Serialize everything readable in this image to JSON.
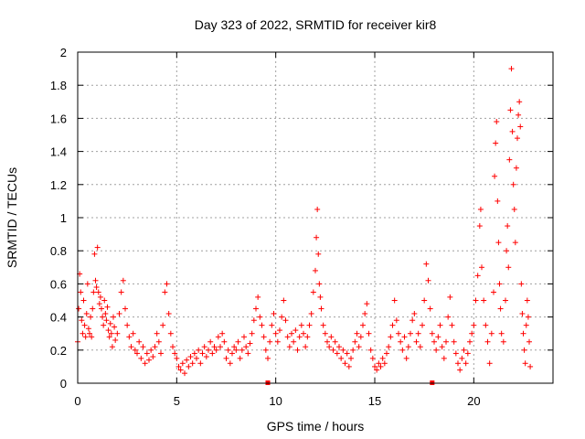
{
  "chart_data": {
    "type": "scatter",
    "title": "Day 323 of 2022, SRMTID for receiver kir8",
    "xlabel": "GPS time / hours",
    "ylabel": "SRMTID / TECUs",
    "xlim": [
      0,
      24
    ],
    "ylim": [
      0,
      2
    ],
    "xticks": [
      0,
      5,
      10,
      15,
      20
    ],
    "yticks": [
      0,
      0.2,
      0.4,
      0.6,
      0.8,
      1,
      1.2,
      1.4,
      1.6,
      1.8,
      2
    ],
    "grid": true,
    "marker": "plus",
    "color": "#ff0000",
    "gap_markers_x": [
      9.6,
      17.9
    ],
    "series": [
      {
        "name": "SRMTID",
        "points": [
          [
            0.0,
            0.25
          ],
          [
            0.05,
            0.45
          ],
          [
            0.1,
            0.66
          ],
          [
            0.15,
            0.55
          ],
          [
            0.2,
            0.38
          ],
          [
            0.25,
            0.3
          ],
          [
            0.3,
            0.5
          ],
          [
            0.35,
            0.35
          ],
          [
            0.4,
            0.28
          ],
          [
            0.45,
            0.42
          ],
          [
            0.5,
            0.6
          ],
          [
            0.55,
            0.33
          ],
          [
            0.6,
            0.3
          ],
          [
            0.65,
            0.4
          ],
          [
            0.7,
            0.28
          ],
          [
            0.75,
            0.45
          ],
          [
            0.8,
            0.55
          ],
          [
            0.85,
            0.78
          ],
          [
            0.9,
            0.62
          ],
          [
            0.95,
            0.58
          ],
          [
            1.0,
            0.82
          ],
          [
            1.05,
            0.55
          ],
          [
            1.1,
            0.48
          ],
          [
            1.15,
            0.52
          ],
          [
            1.2,
            0.45
          ],
          [
            1.25,
            0.4
          ],
          [
            1.3,
            0.35
          ],
          [
            1.35,
            0.5
          ],
          [
            1.4,
            0.42
          ],
          [
            1.45,
            0.38
          ],
          [
            1.5,
            0.46
          ],
          [
            1.55,
            0.32
          ],
          [
            1.6,
            0.28
          ],
          [
            1.65,
            0.36
          ],
          [
            1.7,
            0.3
          ],
          [
            1.75,
            0.22
          ],
          [
            1.8,
            0.4
          ],
          [
            1.85,
            0.34
          ],
          [
            1.9,
            0.26
          ],
          [
            2.0,
            0.3
          ],
          [
            2.1,
            0.42
          ],
          [
            2.2,
            0.55
          ],
          [
            2.3,
            0.62
          ],
          [
            2.4,
            0.45
          ],
          [
            2.5,
            0.35
          ],
          [
            2.6,
            0.28
          ],
          [
            2.7,
            0.22
          ],
          [
            2.8,
            0.3
          ],
          [
            2.9,
            0.2
          ],
          [
            3.0,
            0.18
          ],
          [
            3.1,
            0.25
          ],
          [
            3.2,
            0.15
          ],
          [
            3.3,
            0.22
          ],
          [
            3.4,
            0.12
          ],
          [
            3.5,
            0.18
          ],
          [
            3.6,
            0.14
          ],
          [
            3.7,
            0.2
          ],
          [
            3.8,
            0.16
          ],
          [
            3.9,
            0.22
          ],
          [
            4.0,
            0.3
          ],
          [
            4.1,
            0.25
          ],
          [
            4.2,
            0.18
          ],
          [
            4.3,
            0.35
          ],
          [
            4.4,
            0.55
          ],
          [
            4.5,
            0.6
          ],
          [
            4.6,
            0.42
          ],
          [
            4.7,
            0.3
          ],
          [
            4.8,
            0.22
          ],
          [
            4.9,
            0.18
          ],
          [
            5.0,
            0.15
          ],
          [
            5.1,
            0.1
          ],
          [
            5.2,
            0.08
          ],
          [
            5.3,
            0.12
          ],
          [
            5.4,
            0.06
          ],
          [
            5.5,
            0.14
          ],
          [
            5.6,
            0.1
          ],
          [
            5.7,
            0.16
          ],
          [
            5.8,
            0.12
          ],
          [
            5.9,
            0.18
          ],
          [
            6.0,
            0.15
          ],
          [
            6.1,
            0.2
          ],
          [
            6.2,
            0.12
          ],
          [
            6.3,
            0.18
          ],
          [
            6.4,
            0.22
          ],
          [
            6.5,
            0.16
          ],
          [
            6.6,
            0.2
          ],
          [
            6.7,
            0.25
          ],
          [
            6.8,
            0.18
          ],
          [
            6.9,
            0.22
          ],
          [
            7.0,
            0.2
          ],
          [
            7.1,
            0.28
          ],
          [
            7.2,
            0.22
          ],
          [
            7.3,
            0.3
          ],
          [
            7.4,
            0.25
          ],
          [
            7.5,
            0.15
          ],
          [
            7.6,
            0.2
          ],
          [
            7.7,
            0.12
          ],
          [
            7.8,
            0.18
          ],
          [
            7.9,
            0.22
          ],
          [
            8.0,
            0.2
          ],
          [
            8.1,
            0.25
          ],
          [
            8.2,
            0.15
          ],
          [
            8.3,
            0.2
          ],
          [
            8.4,
            0.28
          ],
          [
            8.5,
            0.22
          ],
          [
            8.6,
            0.18
          ],
          [
            8.7,
            0.24
          ],
          [
            8.8,
            0.3
          ],
          [
            8.9,
            0.38
          ],
          [
            9.0,
            0.45
          ],
          [
            9.1,
            0.52
          ],
          [
            9.2,
            0.4
          ],
          [
            9.3,
            0.35
          ],
          [
            9.4,
            0.28
          ],
          [
            9.5,
            0.2
          ],
          [
            9.6,
            0.15
          ],
          [
            9.7,
            0.25
          ],
          [
            9.8,
            0.35
          ],
          [
            9.9,
            0.42
          ],
          [
            10.0,
            0.3
          ],
          [
            10.1,
            0.25
          ],
          [
            10.2,
            0.32
          ],
          [
            10.3,
            0.4
          ],
          [
            10.4,
            0.5
          ],
          [
            10.5,
            0.38
          ],
          [
            10.6,
            0.28
          ],
          [
            10.7,
            0.22
          ],
          [
            10.8,
            0.3
          ],
          [
            10.9,
            0.25
          ],
          [
            11.0,
            0.32
          ],
          [
            11.1,
            0.2
          ],
          [
            11.2,
            0.28
          ],
          [
            11.3,
            0.35
          ],
          [
            11.4,
            0.3
          ],
          [
            11.5,
            0.22
          ],
          [
            11.6,
            0.28
          ],
          [
            11.7,
            0.35
          ],
          [
            11.8,
            0.42
          ],
          [
            11.9,
            0.55
          ],
          [
            12.0,
            0.68
          ],
          [
            12.05,
            0.88
          ],
          [
            12.1,
            1.05
          ],
          [
            12.15,
            0.78
          ],
          [
            12.2,
            0.6
          ],
          [
            12.25,
            0.52
          ],
          [
            12.3,
            0.45
          ],
          [
            12.4,
            0.35
          ],
          [
            12.5,
            0.3
          ],
          [
            12.6,
            0.25
          ],
          [
            12.7,
            0.22
          ],
          [
            12.8,
            0.28
          ],
          [
            12.9,
            0.2
          ],
          [
            13.0,
            0.25
          ],
          [
            13.1,
            0.18
          ],
          [
            13.2,
            0.22
          ],
          [
            13.3,
            0.15
          ],
          [
            13.4,
            0.2
          ],
          [
            13.5,
            0.12
          ],
          [
            13.6,
            0.18
          ],
          [
            13.7,
            0.1
          ],
          [
            13.8,
            0.15
          ],
          [
            13.9,
            0.2
          ],
          [
            14.0,
            0.25
          ],
          [
            14.1,
            0.3
          ],
          [
            14.2,
            0.22
          ],
          [
            14.3,
            0.28
          ],
          [
            14.4,
            0.35
          ],
          [
            14.5,
            0.42
          ],
          [
            14.6,
            0.48
          ],
          [
            14.7,
            0.3
          ],
          [
            14.8,
            0.2
          ],
          [
            14.9,
            0.15
          ],
          [
            15.0,
            0.1
          ],
          [
            15.1,
            0.08
          ],
          [
            15.2,
            0.12
          ],
          [
            15.3,
            0.1
          ],
          [
            15.4,
            0.15
          ],
          [
            15.5,
            0.12
          ],
          [
            15.6,
            0.18
          ],
          [
            15.7,
            0.22
          ],
          [
            15.8,
            0.28
          ],
          [
            15.9,
            0.35
          ],
          [
            16.0,
            0.5
          ],
          [
            16.1,
            0.38
          ],
          [
            16.2,
            0.3
          ],
          [
            16.3,
            0.25
          ],
          [
            16.4,
            0.2
          ],
          [
            16.5,
            0.28
          ],
          [
            16.6,
            0.15
          ],
          [
            16.7,
            0.22
          ],
          [
            16.8,
            0.3
          ],
          [
            16.9,
            0.38
          ],
          [
            17.0,
            0.42
          ],
          [
            17.1,
            0.25
          ],
          [
            17.2,
            0.3
          ],
          [
            17.3,
            0.22
          ],
          [
            17.4,
            0.35
          ],
          [
            17.5,
            0.5
          ],
          [
            17.6,
            0.72
          ],
          [
            17.7,
            0.62
          ],
          [
            17.8,
            0.45
          ],
          [
            17.9,
            0.3
          ],
          [
            18.0,
            0.25
          ],
          [
            18.1,
            0.2
          ],
          [
            18.2,
            0.28
          ],
          [
            18.3,
            0.35
          ],
          [
            18.4,
            0.22
          ],
          [
            18.5,
            0.15
          ],
          [
            18.6,
            0.25
          ],
          [
            18.7,
            0.4
          ],
          [
            18.8,
            0.52
          ],
          [
            18.9,
            0.35
          ],
          [
            19.0,
            0.25
          ],
          [
            19.1,
            0.18
          ],
          [
            19.2,
            0.12
          ],
          [
            19.3,
            0.08
          ],
          [
            19.4,
            0.15
          ],
          [
            19.5,
            0.2
          ],
          [
            19.6,
            0.12
          ],
          [
            19.7,
            0.18
          ],
          [
            19.8,
            0.25
          ],
          [
            19.9,
            0.3
          ],
          [
            20.0,
            0.35
          ],
          [
            20.1,
            0.5
          ],
          [
            20.2,
            0.65
          ],
          [
            20.3,
            0.95
          ],
          [
            20.35,
            1.05
          ],
          [
            20.4,
            0.7
          ],
          [
            20.5,
            0.5
          ],
          [
            20.6,
            0.35
          ],
          [
            20.7,
            0.25
          ],
          [
            20.8,
            0.12
          ],
          [
            20.9,
            0.3
          ],
          [
            21.0,
            0.55
          ],
          [
            21.05,
            1.25
          ],
          [
            21.1,
            1.45
          ],
          [
            21.15,
            1.58
          ],
          [
            21.2,
            1.1
          ],
          [
            21.25,
            0.85
          ],
          [
            21.3,
            0.6
          ],
          [
            21.35,
            0.45
          ],
          [
            21.4,
            0.3
          ],
          [
            21.5,
            0.25
          ],
          [
            21.6,
            0.5
          ],
          [
            21.65,
            0.8
          ],
          [
            21.7,
            0.95
          ],
          [
            21.75,
            0.7
          ],
          [
            21.8,
            1.35
          ],
          [
            21.85,
            1.65
          ],
          [
            21.9,
            1.9
          ],
          [
            21.95,
            1.52
          ],
          [
            22.0,
            1.2
          ],
          [
            22.05,
            1.05
          ],
          [
            22.1,
            0.85
          ],
          [
            22.15,
            1.3
          ],
          [
            22.2,
            1.48
          ],
          [
            22.25,
            1.62
          ],
          [
            22.3,
            1.7
          ],
          [
            22.35,
            1.55
          ],
          [
            22.4,
            0.6
          ],
          [
            22.45,
            0.42
          ],
          [
            22.5,
            0.3
          ],
          [
            22.55,
            0.2
          ],
          [
            22.6,
            0.12
          ],
          [
            22.65,
            0.35
          ],
          [
            22.7,
            0.5
          ],
          [
            22.75,
            0.4
          ],
          [
            22.8,
            0.25
          ],
          [
            22.85,
            0.1
          ]
        ]
      }
    ]
  }
}
